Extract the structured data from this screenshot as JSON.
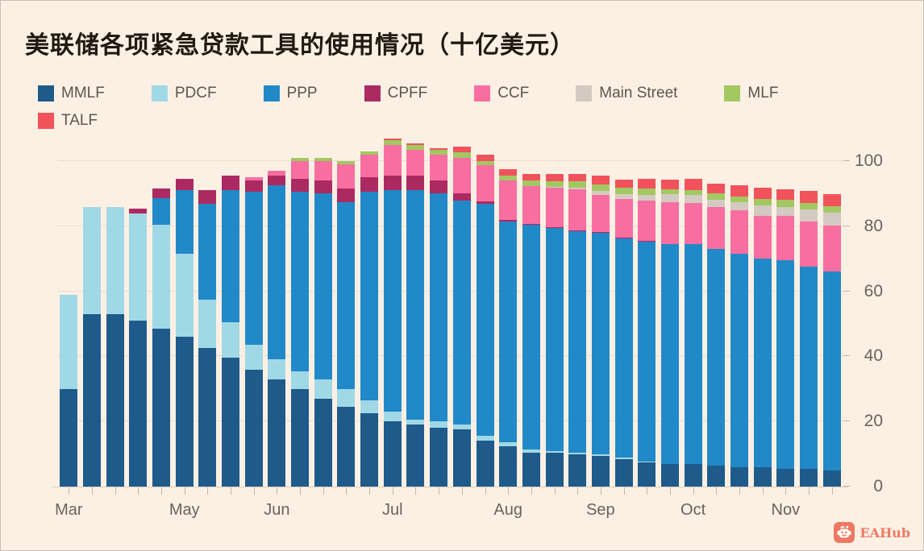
{
  "title": "美联储各项紧急贷款工具的使用情况（十亿美元）",
  "watermark": {
    "label": "EAHub",
    "color": "#EE7962",
    "icon": "robot-logo"
  },
  "colors": {
    "background": "#FCF0E4",
    "title_text": "#211A12",
    "axis_text": "#6A635C",
    "legend_text": "#5C554F",
    "gridline": "#EADDD0",
    "tick": "#C2B8AC",
    "baseline": "#D6C9BC"
  },
  "chart_data": {
    "type": "bar",
    "stacked": true,
    "title": "美联储各项紧急贷款工具的使用情况（十亿美元）",
    "unit_label": "十亿美元",
    "grid": true,
    "legend_position": "top",
    "y_ticks": [
      0,
      20,
      40,
      60,
      80,
      100
    ],
    "ylim": [
      0,
      108
    ],
    "n_bars": 34,
    "month_labels": [
      {
        "label": "Mar",
        "index": 0
      },
      {
        "label": "May",
        "index": 5
      },
      {
        "label": "Jun",
        "index": 9
      },
      {
        "label": "Jul",
        "index": 14
      },
      {
        "label": "Aug",
        "index": 19
      },
      {
        "label": "Sep",
        "index": 23
      },
      {
        "label": "Oct",
        "index": 27
      },
      {
        "label": "Nov",
        "index": 31
      }
    ],
    "series": [
      {
        "name": "MMLF",
        "color": "#1E5A8A",
        "values": [
          30,
          53,
          53,
          51,
          48.5,
          46,
          42.5,
          39.5,
          36,
          33,
          30,
          27,
          24.5,
          22.5,
          20,
          19,
          18,
          17.5,
          14,
          12.5,
          10.5,
          10.5,
          10,
          9.5,
          8.5,
          7.5,
          7,
          7,
          6.5,
          6,
          6,
          5.5,
          5.5,
          5
        ]
      },
      {
        "name": "PDCF",
        "color": "#A1D8E6",
        "values": [
          29,
          33,
          33,
          33,
          32,
          25.5,
          15,
          11,
          7.5,
          6,
          5.5,
          6,
          5.5,
          4,
          3,
          1.5,
          2,
          1.5,
          1.5,
          1,
          1,
          0.5,
          0.5,
          0.5,
          0.3,
          0.3,
          0,
          0,
          0,
          0,
          0,
          0,
          0,
          0
        ]
      },
      {
        "name": "PPP",
        "color": "#2289C8",
        "values": [
          0,
          0,
          0,
          0,
          8,
          19.5,
          29.5,
          40.5,
          47,
          53.5,
          55,
          57,
          57.5,
          64,
          68,
          70.5,
          70,
          69,
          71.5,
          68,
          69,
          68.5,
          68,
          68,
          67.5,
          67.5,
          67.5,
          67.5,
          66.5,
          65.5,
          64,
          64,
          62,
          61
        ]
      },
      {
        "name": "CPFF",
        "color": "#AC2A62",
        "values": [
          0,
          0,
          0,
          1.5,
          3,
          3.5,
          4,
          4.5,
          3.5,
          3,
          4,
          4,
          4,
          4.5,
          4.5,
          4.5,
          4,
          2,
          0.7,
          0.5,
          0.3,
          0.3,
          0.3,
          0.2,
          0.2,
          0.2,
          0,
          0,
          0,
          0,
          0,
          0,
          0,
          0
        ]
      },
      {
        "name": "CCF",
        "color": "#F96EA1",
        "values": [
          0,
          0,
          0,
          0,
          0,
          0,
          0,
          0,
          1,
          1.5,
          5.5,
          6,
          7.5,
          7,
          9.5,
          8,
          8,
          11,
          11,
          12,
          11.5,
          12,
          12.5,
          11.5,
          12,
          12.5,
          13,
          12.7,
          12.8,
          13.3,
          13.3,
          13.7,
          14,
          14.3
        ]
      },
      {
        "name": "Main Street",
        "color": "#D3CAC1",
        "values": [
          0,
          0,
          0,
          0,
          0,
          0,
          0,
          0,
          0,
          0,
          0,
          0,
          0,
          0,
          0,
          0,
          0,
          0,
          0,
          0,
          0,
          0.2,
          0.6,
          1.2,
          1.3,
          1.5,
          2.4,
          2.4,
          2.3,
          2.5,
          3.1,
          2.8,
          3.7,
          3.8
        ]
      },
      {
        "name": "MLF",
        "color": "#A2C862",
        "values": [
          0,
          0,
          0,
          0,
          0,
          0,
          0,
          0,
          0,
          0,
          1,
          1,
          1,
          1,
          1.5,
          1.5,
          1.5,
          1.7,
          1.4,
          1.5,
          1.7,
          1.8,
          1.8,
          1.9,
          2,
          2.1,
          1.4,
          1.6,
          1.9,
          1.9,
          2.1,
          2.1,
          2,
          2
        ]
      },
      {
        "name": "TALF",
        "color": "#F2525B",
        "values": [
          0,
          0,
          0,
          0,
          0,
          0,
          0,
          0,
          0,
          0,
          0,
          0,
          0,
          0,
          0.5,
          0.5,
          0.5,
          1.8,
          1.8,
          2,
          2,
          2.2,
          2.3,
          2.8,
          2.5,
          2.9,
          3.1,
          3.4,
          3.2,
          3.3,
          3.3,
          3.3,
          3.6,
          3.8
        ]
      }
    ]
  }
}
